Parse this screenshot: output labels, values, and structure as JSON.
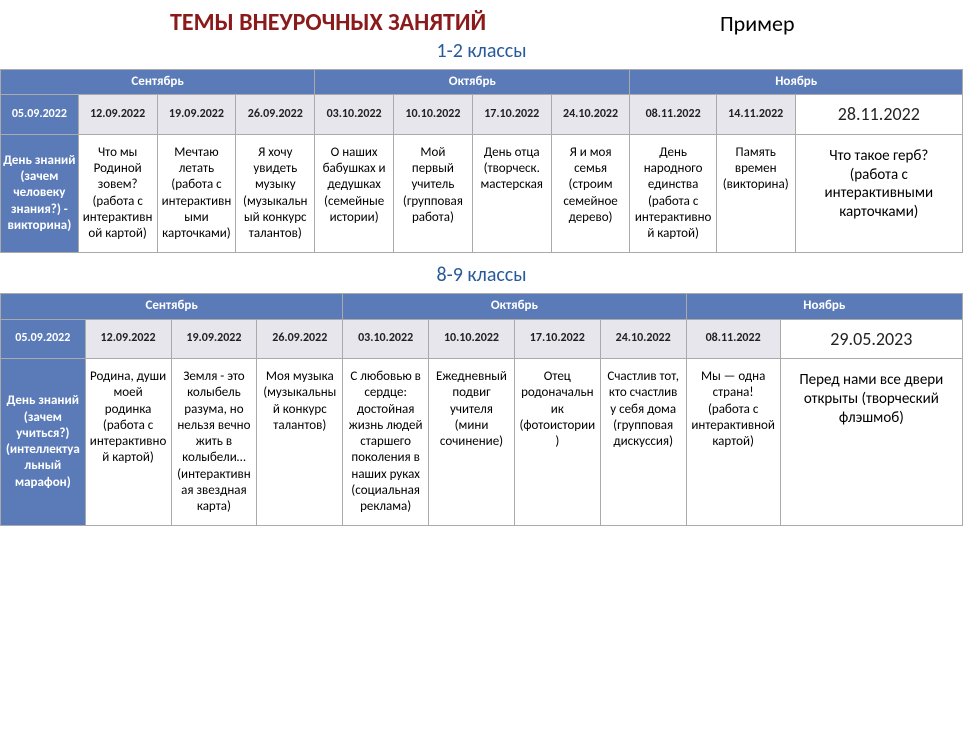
{
  "header": {
    "title": "ТЕМЫ ВНЕУРОЧНЫХ ЗАНЯТИЙ",
    "example": "Пример"
  },
  "colors": {
    "title_color": "#8b1a1a",
    "subtitle_color": "#2a5a9a",
    "header_bg": "#5a7bb8",
    "header_fg": "#ffffff",
    "date_bg": "#e6e6ec",
    "cell_bg": "#ffffff",
    "border": "#aaaaaa"
  },
  "section1": {
    "subtitle": "1-2 классы",
    "months": {
      "m1": "Сентябрь",
      "m2": "Октябрь",
      "m3": "Ноябрь"
    },
    "dates": {
      "d0": "05.09.2022",
      "d1": "12.09.2022",
      "d2": "19.09.2022",
      "d3": "26.09.2022",
      "d4": "03.10.2022",
      "d5": "10.10.2022",
      "d6": "17.10.2022",
      "d7": "24.10.2022",
      "d8": "08.11.2022",
      "d9": "14.11.2022",
      "d10": "28.11.2022"
    },
    "row_header": "День знаний (зачем человеку знания?) - викторина)",
    "cells": {
      "c1": "Что мы Родиной зовем? (работа с интерактивной картой)",
      "c2": "Мечтаю летать (работа с интерактивными карточками)",
      "c3": "Я хочу увидеть музыку (музыкальный конкурс талантов)",
      "c4": "О наших бабушках и дедушках (семейные истории)",
      "c5": "Мой первый учитель (групповая работа)",
      "c6": "День отца (творческ. мастерская",
      "c7": "Я и моя семья (строим семейное дерево)",
      "c8": "День народного единства (работа с интерактивной картой)",
      "c9": "Память времен (викторина)",
      "c10": "Что такое герб? (работа с интерактивными карточками)"
    }
  },
  "section2": {
    "subtitle": "8-9 классы",
    "months": {
      "m1": "Сентябрь",
      "m2": "Октябрь",
      "m3": "Ноябрь"
    },
    "dates": {
      "d0": "05.09.2022",
      "d1": "12.09.2022",
      "d2": "19.09.2022",
      "d3": "26.09.2022",
      "d4": "03.10.2022",
      "d5": "10.10.2022",
      "d6": "17.10.2022",
      "d7": "24.10.2022",
      "d8": "08.11.2022",
      "d9": "29.05.2023"
    },
    "row_header": "День знаний (зачем учиться?) (интеллектуа льный марафон)",
    "cells": {
      "c1": "Родина, души моей родинка (работа с интерактивной картой)",
      "c2": "Земля - это колыбель разума, но нельзя вечно жить в колыбели… (интерактивная звездная карта)",
      "c3": "Моя музыка (музыкальный конкурс талантов)",
      "c4": "С любовью в сердце: достойная жизнь людей старшего поколения в наших руках (социальная реклама)",
      "c5": "Ежедневный подвиг учителя (мини сочинение)",
      "c6": "Отец родоначальник (фотоистории)",
      "c7": "Счастлив тот, кто счастлив у себя дома (групповая дискуссия)",
      "c8": "Мы — одна страна! (работа с интерактивной картой)",
      "c9": "Перед нами все двери открыты (творческий флэшмоб)"
    }
  }
}
